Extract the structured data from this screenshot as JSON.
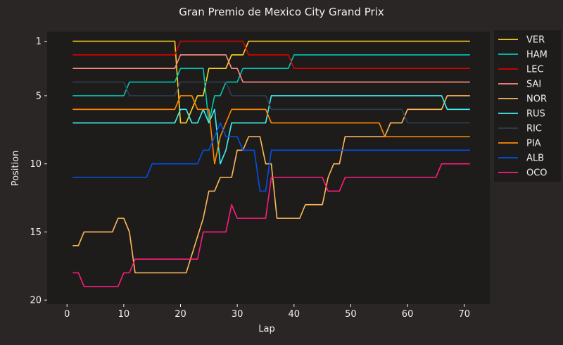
{
  "chart_data": {
    "type": "line",
    "title": "Gran Premio de Mexico City Grand Prix",
    "xlabel": "Lap",
    "ylabel": "Position",
    "xlim": [
      -3.5,
      74.5
    ],
    "ylim": [
      20.3,
      0.3
    ],
    "y_inverted": true,
    "xticks": [
      0,
      10,
      20,
      30,
      40,
      50,
      60,
      70
    ],
    "yticks": [
      1,
      5,
      10,
      15,
      20
    ],
    "grid": false,
    "legend_position": "outside-top-right",
    "background": "#1e1c1b",
    "figure_background": "#292625",
    "series": [
      {
        "name": "VER",
        "color": "#ffd21f",
        "points": [
          [
            1,
            1
          ],
          [
            19,
            1
          ],
          [
            20,
            7
          ],
          [
            21,
            7
          ],
          [
            22,
            6
          ],
          [
            23,
            5
          ],
          [
            24,
            5
          ],
          [
            25,
            3
          ],
          [
            28,
            3
          ],
          [
            29,
            2
          ],
          [
            31,
            2
          ],
          [
            32,
            1
          ],
          [
            71,
            1
          ]
        ]
      },
      {
        "name": "HAM",
        "color": "#00c8b4",
        "points": [
          [
            1,
            5
          ],
          [
            10,
            5
          ],
          [
            11,
            4
          ],
          [
            19,
            4
          ],
          [
            20,
            3
          ],
          [
            24,
            3
          ],
          [
            25,
            7
          ],
          [
            26,
            5
          ],
          [
            27,
            5
          ],
          [
            28,
            4
          ],
          [
            30,
            4
          ],
          [
            31,
            3
          ],
          [
            39,
            3
          ],
          [
            40,
            2
          ],
          [
            71,
            2
          ]
        ]
      },
      {
        "name": "LEC",
        "color": "#dc0000",
        "points": [
          [
            1,
            2
          ],
          [
            19,
            2
          ],
          [
            20,
            1
          ],
          [
            31,
            1
          ],
          [
            32,
            2
          ],
          [
            39,
            2
          ],
          [
            40,
            3
          ],
          [
            71,
            3
          ]
        ]
      },
      {
        "name": "SAI",
        "color": "#ff8d85",
        "points": [
          [
            1,
            3
          ],
          [
            19,
            3
          ],
          [
            20,
            2
          ],
          [
            28,
            2
          ],
          [
            29,
            3
          ],
          [
            30,
            3
          ],
          [
            31,
            4
          ],
          [
            71,
            4
          ]
        ]
      },
      {
        "name": "NOR",
        "color": "#ffb95a",
        "points": [
          [
            1,
            16
          ],
          [
            2,
            16
          ],
          [
            3,
            15
          ],
          [
            8,
            15
          ],
          [
            9,
            14
          ],
          [
            10,
            14
          ],
          [
            11,
            15
          ],
          [
            12,
            18
          ],
          [
            21,
            18
          ],
          [
            24,
            14
          ],
          [
            25,
            12
          ],
          [
            26,
            12
          ],
          [
            27,
            11
          ],
          [
            29,
            11
          ],
          [
            30,
            9
          ],
          [
            31,
            9
          ],
          [
            32,
            8
          ],
          [
            34,
            8
          ],
          [
            35,
            10
          ],
          [
            36,
            10
          ],
          [
            37,
            14
          ],
          [
            41,
            14
          ],
          [
            42,
            13
          ],
          [
            45,
            13
          ],
          [
            46,
            11
          ],
          [
            47,
            10
          ],
          [
            48,
            10
          ],
          [
            49,
            8
          ],
          [
            56,
            8
          ],
          [
            57,
            7
          ],
          [
            59,
            7
          ],
          [
            60,
            6
          ],
          [
            66,
            6
          ],
          [
            67,
            5
          ],
          [
            71,
            5
          ]
        ]
      },
      {
        "name": "RUS",
        "color": "#3cf0f0",
        "points": [
          [
            1,
            7
          ],
          [
            19,
            7
          ],
          [
            20,
            6
          ],
          [
            21,
            6
          ],
          [
            22,
            7
          ],
          [
            23,
            7
          ],
          [
            24,
            6
          ],
          [
            25,
            7
          ],
          [
            26,
            6
          ],
          [
            27,
            10
          ],
          [
            28,
            9
          ],
          [
            29,
            7
          ],
          [
            35,
            7
          ],
          [
            36,
            5
          ],
          [
            66,
            5
          ],
          [
            67,
            6
          ],
          [
            71,
            6
          ]
        ]
      },
      {
        "name": "RIC",
        "color": "#2d3e50",
        "points": [
          [
            1,
            4
          ],
          [
            10,
            4
          ],
          [
            11,
            5
          ],
          [
            19,
            5
          ],
          [
            20,
            4
          ],
          [
            28,
            4
          ],
          [
            29,
            5
          ],
          [
            35,
            5
          ],
          [
            36,
            6
          ],
          [
            59,
            6
          ],
          [
            60,
            7
          ],
          [
            71,
            7
          ]
        ]
      },
      {
        "name": "PIA",
        "color": "#ff8700",
        "points": [
          [
            1,
            6
          ],
          [
            19,
            6
          ],
          [
            20,
            5
          ],
          [
            22,
            5
          ],
          [
            23,
            6
          ],
          [
            25,
            6
          ],
          [
            26,
            10
          ],
          [
            27,
            8
          ],
          [
            28,
            7
          ],
          [
            29,
            6
          ],
          [
            35,
            6
          ],
          [
            36,
            7
          ],
          [
            55,
            7
          ],
          [
            56,
            8
          ],
          [
            71,
            8
          ]
        ]
      },
      {
        "name": "ALB",
        "color": "#0050e6",
        "points": [
          [
            1,
            11
          ],
          [
            14,
            11
          ],
          [
            15,
            10
          ],
          [
            23,
            10
          ],
          [
            24,
            9
          ],
          [
            25,
            9
          ],
          [
            26,
            8
          ],
          [
            27,
            7
          ],
          [
            28,
            8
          ],
          [
            30,
            8
          ],
          [
            31,
            9
          ],
          [
            33,
            9
          ],
          [
            34,
            12
          ],
          [
            35,
            12
          ],
          [
            36,
            9
          ],
          [
            71,
            9
          ]
        ]
      },
      {
        "name": "OCO",
        "color": "#fb1c7e",
        "points": [
          [
            1,
            18
          ],
          [
            2,
            18
          ],
          [
            3,
            19
          ],
          [
            9,
            19
          ],
          [
            10,
            18
          ],
          [
            11,
            18
          ],
          [
            12,
            17
          ],
          [
            23,
            17
          ],
          [
            24,
            15
          ],
          [
            28,
            15
          ],
          [
            29,
            13
          ],
          [
            30,
            14
          ],
          [
            35,
            14
          ],
          [
            36,
            11
          ],
          [
            45,
            11
          ],
          [
            46,
            12
          ],
          [
            48,
            12
          ],
          [
            49,
            11
          ],
          [
            65,
            11
          ],
          [
            66,
            10
          ],
          [
            71,
            10
          ]
        ]
      }
    ]
  }
}
